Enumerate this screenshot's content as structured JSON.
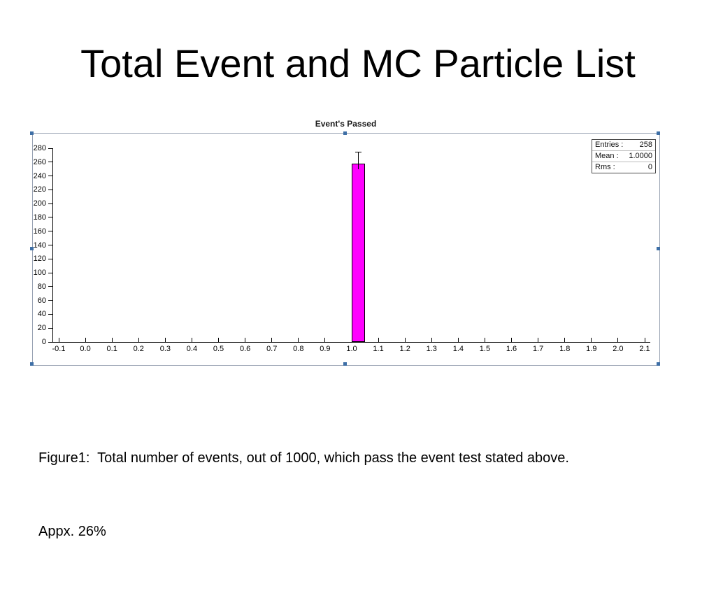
{
  "slide": {
    "title": "Total Event and MC Particle List"
  },
  "figure_caption": {
    "line1": "Figure1:  Total number of events, out of 1000, which pass the event test stated above.",
    "line2": "Appx. 26%"
  },
  "ui": {
    "selection_handle_color": "#3e6fa6"
  },
  "chart_data": {
    "type": "bar",
    "title": "Event's Passed",
    "xlim": [
      -0.1,
      2.1
    ],
    "ylim": [
      0,
      280
    ],
    "x_tick_step": 0.1,
    "x_tick_labels": [
      "-0.1",
      "0.0",
      "0.1",
      "0.2",
      "0.3",
      "0.4",
      "0.5",
      "0.6",
      "0.7",
      "0.8",
      "0.9",
      "1.0",
      "1.1",
      "1.2",
      "1.3",
      "1.4",
      "1.5",
      "1.6",
      "1.7",
      "1.8",
      "1.9",
      "2.0",
      "2.1"
    ],
    "y_tick_labels": [
      "0",
      "20",
      "40",
      "60",
      "80",
      "100",
      "120",
      "140",
      "160",
      "180",
      "200",
      "220",
      "240",
      "260",
      "280"
    ],
    "bars": [
      {
        "x": 1.0,
        "value": 258,
        "error": 16,
        "bin_width": 0.05
      }
    ],
    "bar_color": "#ff00ff",
    "grid": false,
    "legend": "none",
    "stats_box": {
      "rows": [
        {
          "label": "Entries :",
          "value": "258"
        },
        {
          "label": "Mean :",
          "value": "1.0000"
        },
        {
          "label": "Rms :",
          "value": "0"
        }
      ]
    }
  }
}
